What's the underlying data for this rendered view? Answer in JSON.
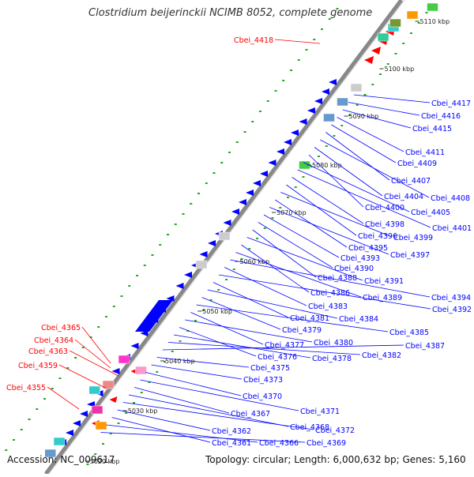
{
  "title": "Clostridium beijerinckii NCIMB 8052, complete genome",
  "footer": {
    "accession": "Accession: NC_009617",
    "topology": "Topology: circular; Length: 6,000,632 bp; Genes: 5,160"
  },
  "colors": {
    "forward_gene": "#ff0000",
    "reverse_gene": "#0000ff",
    "backbone": "#888888",
    "gc_dots": "#22aa22"
  },
  "ruler_labels": [
    "5110 kbp",
    "5100 kbp",
    "5090 kbp",
    "5080 kbp",
    "5070 kbp",
    "5060 kbp",
    "5050 kbp",
    "5040 kbp",
    "5030 kbp",
    "5020 kbp"
  ],
  "red_genes": [
    "Cbei_4418",
    "Cbei_4365",
    "Cbei_4364",
    "Cbei_4363",
    "Cbei_4359",
    "Cbei_4355"
  ],
  "blue_genes": [
    "Cbei_4417",
    "Cbei_4416",
    "Cbei_4415",
    "Cbei_4411",
    "Cbei_4409",
    "Cbei_4407",
    "Cbei_4408",
    "Cbei_4404",
    "Cbei_4400",
    "Cbei_4405",
    "Cbei_4401",
    "Cbei_4398",
    "Cbei_4396",
    "Cbei_4399",
    "Cbei_4395",
    "Cbei_4397",
    "Cbei_4393",
    "Cbei_4390",
    "Cbei_4388",
    "Cbei_4391",
    "Cbei_4386",
    "Cbei_4389",
    "Cbei_4394",
    "Cbei_4383",
    "Cbei_4392",
    "Cbei_4381",
    "Cbei_4384",
    "Cbei_4379",
    "Cbei_4385",
    "Cbei_4377",
    "Cbei_4380",
    "Cbei_4376",
    "Cbei_4378",
    "Cbei_4382",
    "Cbei_4387",
    "Cbei_4375",
    "Cbei_4373",
    "Cbei_4370",
    "Cbei_4371",
    "Cbei_4367",
    "Cbei_4368",
    "Cbei_4372",
    "Cbei_4362",
    "Cbei_4361",
    "Cbei_4366",
    "Cbei_4369"
  ]
}
